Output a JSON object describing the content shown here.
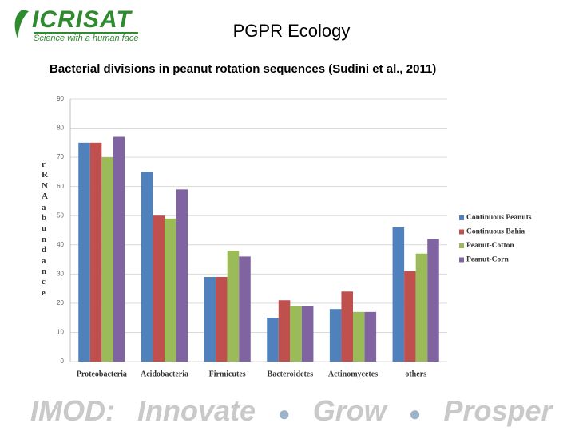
{
  "header": {
    "logo": "ICRISAT",
    "tagline": "Science with a human face",
    "title": "PGPR Ecology",
    "subtitle": "Bacterial divisions in peanut rotation sequences (Sudini et al., 2011)"
  },
  "chart_data": {
    "type": "bar",
    "y_label": "rRNAabundance",
    "categories": [
      "Proteobacteria",
      "Acidobacteria",
      "Firmicutes",
      "Bacteroidetes",
      "Actinomycetes",
      "others"
    ],
    "series": [
      {
        "name": "Continuous Peanuts",
        "color": "#4f81bd",
        "values": [
          75,
          65,
          29,
          15,
          18,
          46
        ]
      },
      {
        "name": "Continuous Bahia",
        "color": "#c0504d",
        "values": [
          75,
          50,
          29,
          21,
          24,
          31
        ]
      },
      {
        "name": "Peanut-Cotton",
        "color": "#9bbb59",
        "values": [
          70,
          49,
          38,
          19,
          17,
          37
        ]
      },
      {
        "name": "Peanut-Corn",
        "color": "#8064a2",
        "values": [
          77,
          59,
          36,
          19,
          17,
          42
        ]
      }
    ],
    "ylim": [
      0,
      90
    ],
    "yticks": [
      0,
      10,
      20,
      30,
      40,
      50,
      60,
      70,
      80,
      90
    ],
    "grid": true,
    "legend": "right"
  },
  "footer": {
    "brand": "IMOD:",
    "words": [
      "Innovate",
      "Grow",
      "Prosper"
    ]
  }
}
